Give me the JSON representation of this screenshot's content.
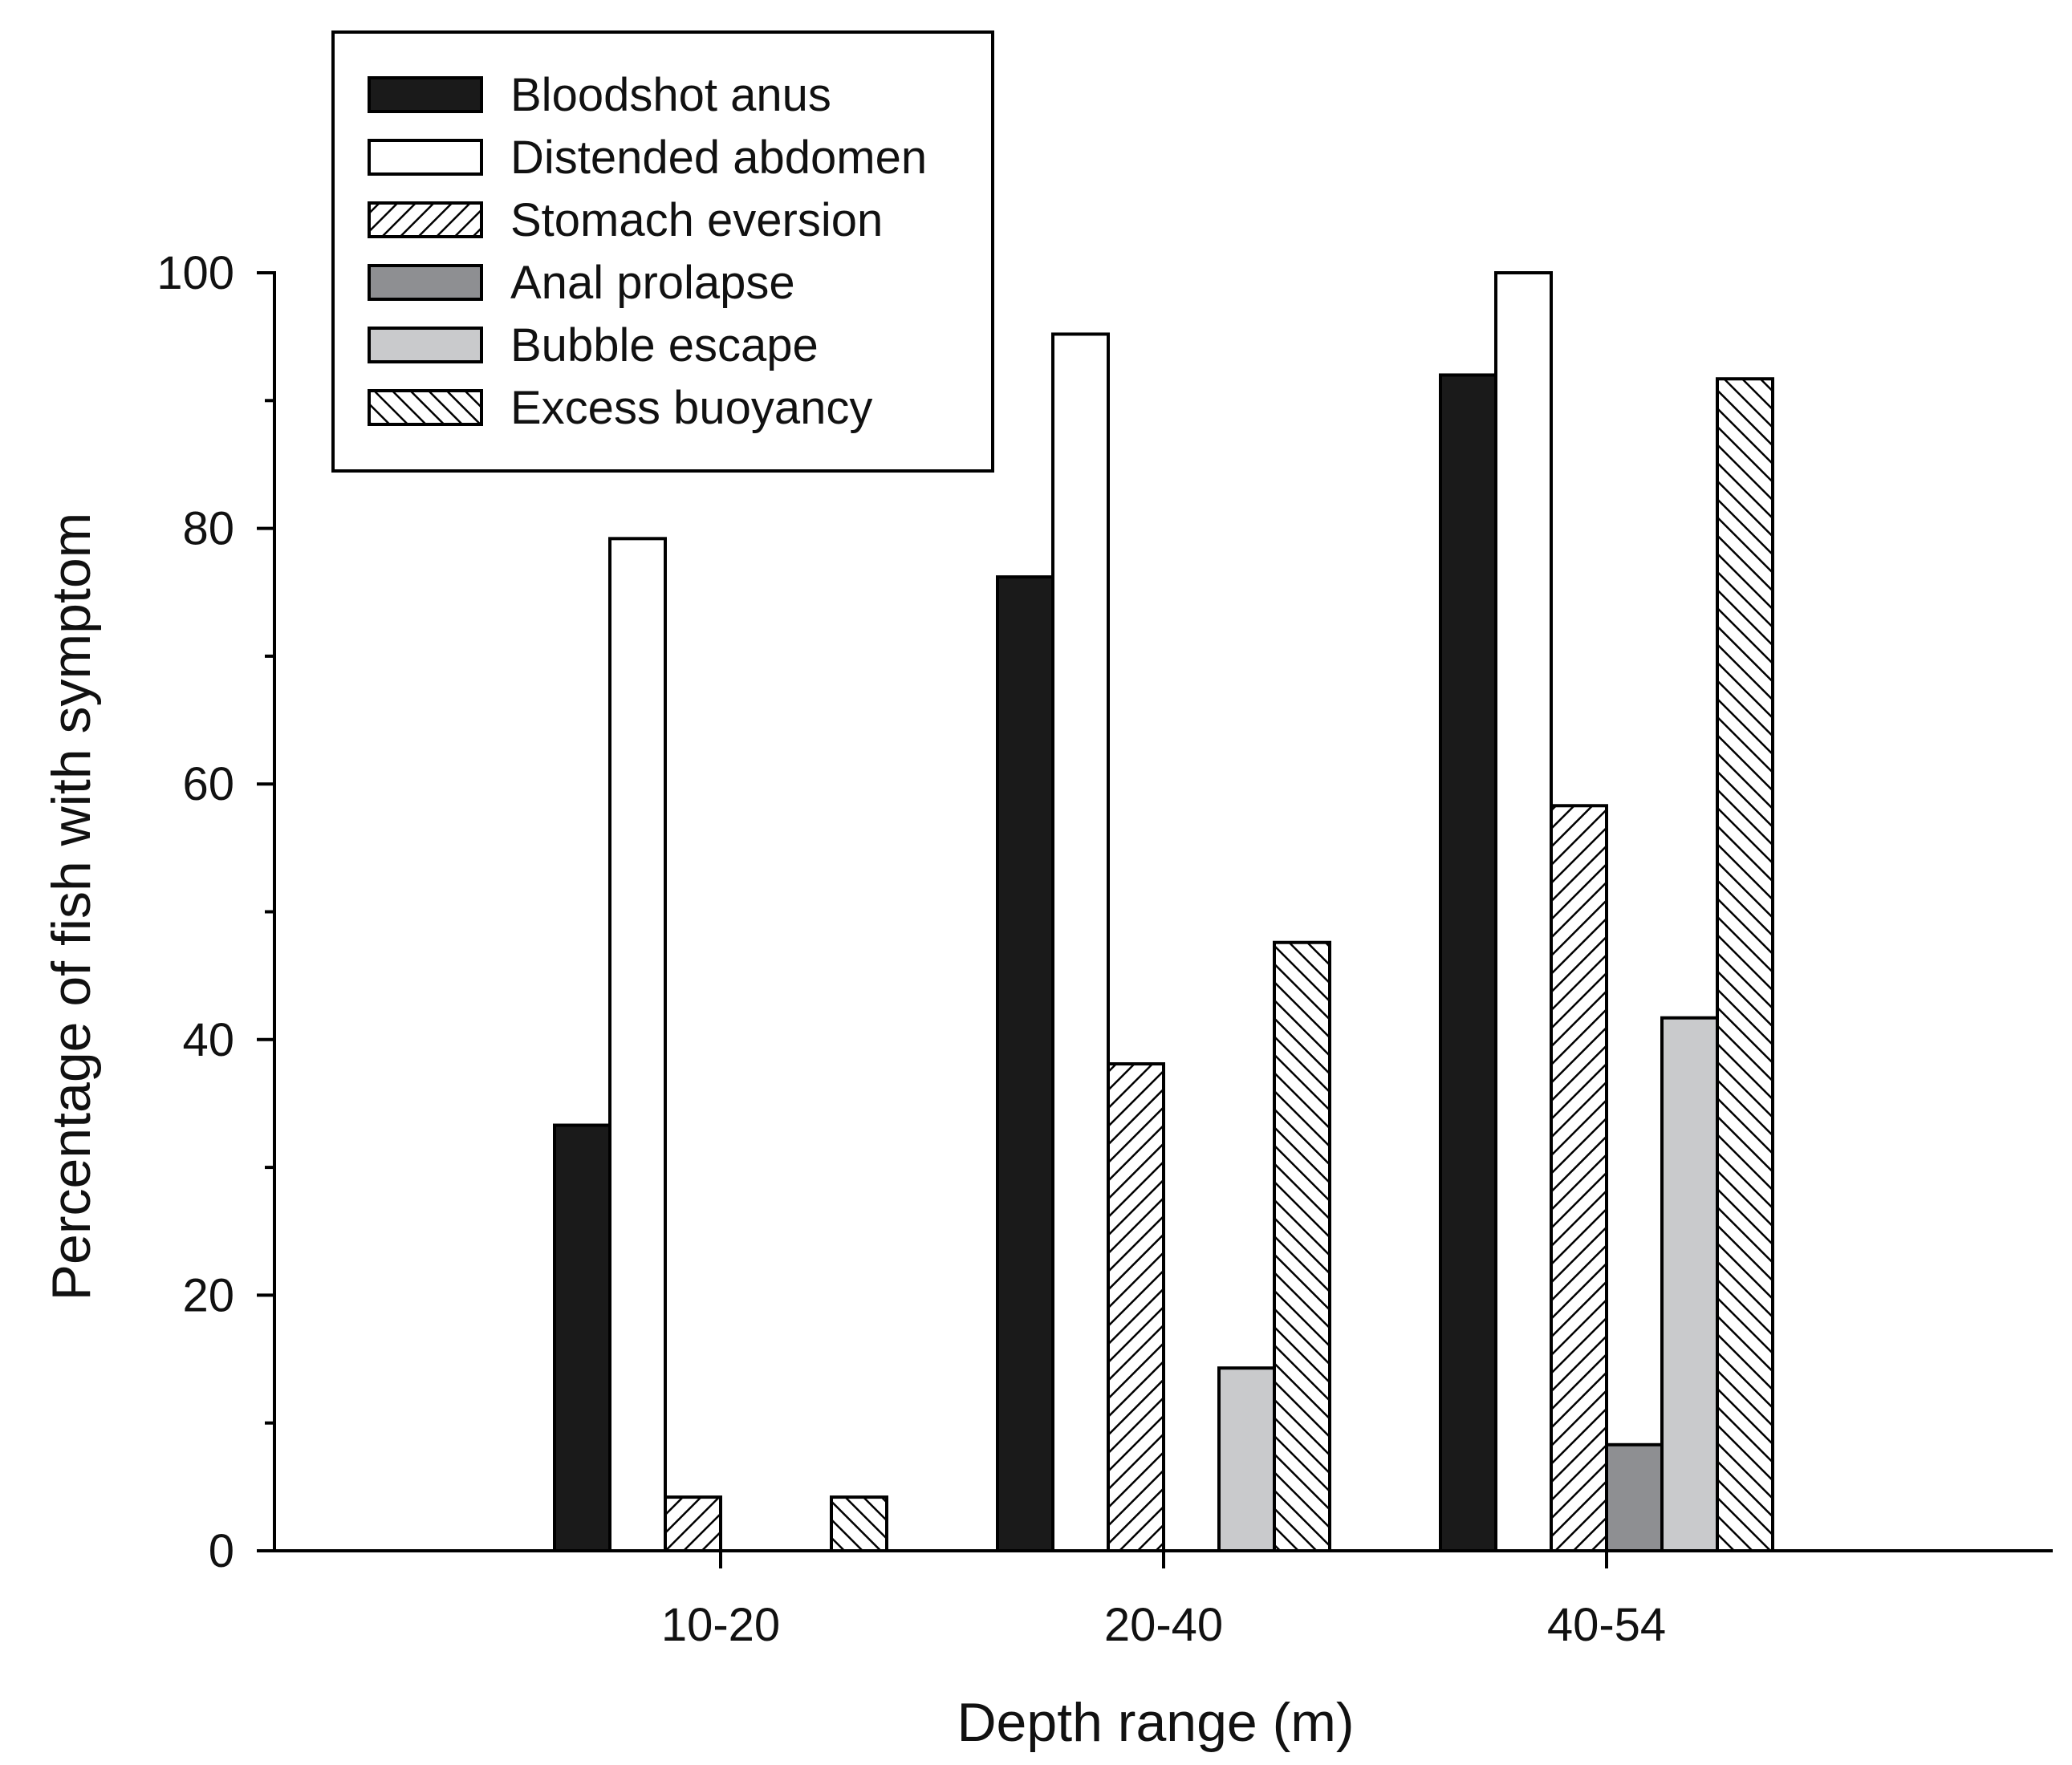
{
  "chart_data": {
    "type": "bar",
    "title": "",
    "xlabel": "Depth range (m)",
    "ylabel": "Percentage of fish with symptom",
    "categories": [
      "10-20",
      "20-40",
      "40-54"
    ],
    "ylim": [
      0,
      100
    ],
    "yticks": [
      0,
      20,
      40,
      60,
      80,
      100
    ],
    "yminor_ticks": [
      10,
      30,
      50,
      70,
      90
    ],
    "grid": false,
    "legend_position": "top-left",
    "series": [
      {
        "name": "Bloodshot anus",
        "pattern": "solid-black",
        "values": [
          33.3,
          76.2,
          92.0
        ]
      },
      {
        "name": "Distended abdomen",
        "pattern": "white",
        "values": [
          79.2,
          95.2,
          100.0
        ]
      },
      {
        "name": "Stomach eversion",
        "pattern": "forward-hatch",
        "values": [
          4.2,
          38.1,
          58.3
        ]
      },
      {
        "name": "Anal prolapse",
        "pattern": "dark-gray",
        "values": [
          0,
          0,
          8.3
        ]
      },
      {
        "name": "Bubble escape",
        "pattern": "light-gray",
        "values": [
          0,
          14.3,
          41.7
        ]
      },
      {
        "name": "Excess buoyancy",
        "pattern": "back-hatch",
        "values": [
          4.2,
          47.6,
          91.7
        ]
      }
    ],
    "colors": {
      "black": "#1a1a1a",
      "white": "#ffffff",
      "dark_gray": "#8e8f92",
      "light_gray": "#c9cacc",
      "stroke": "#000000"
    }
  }
}
